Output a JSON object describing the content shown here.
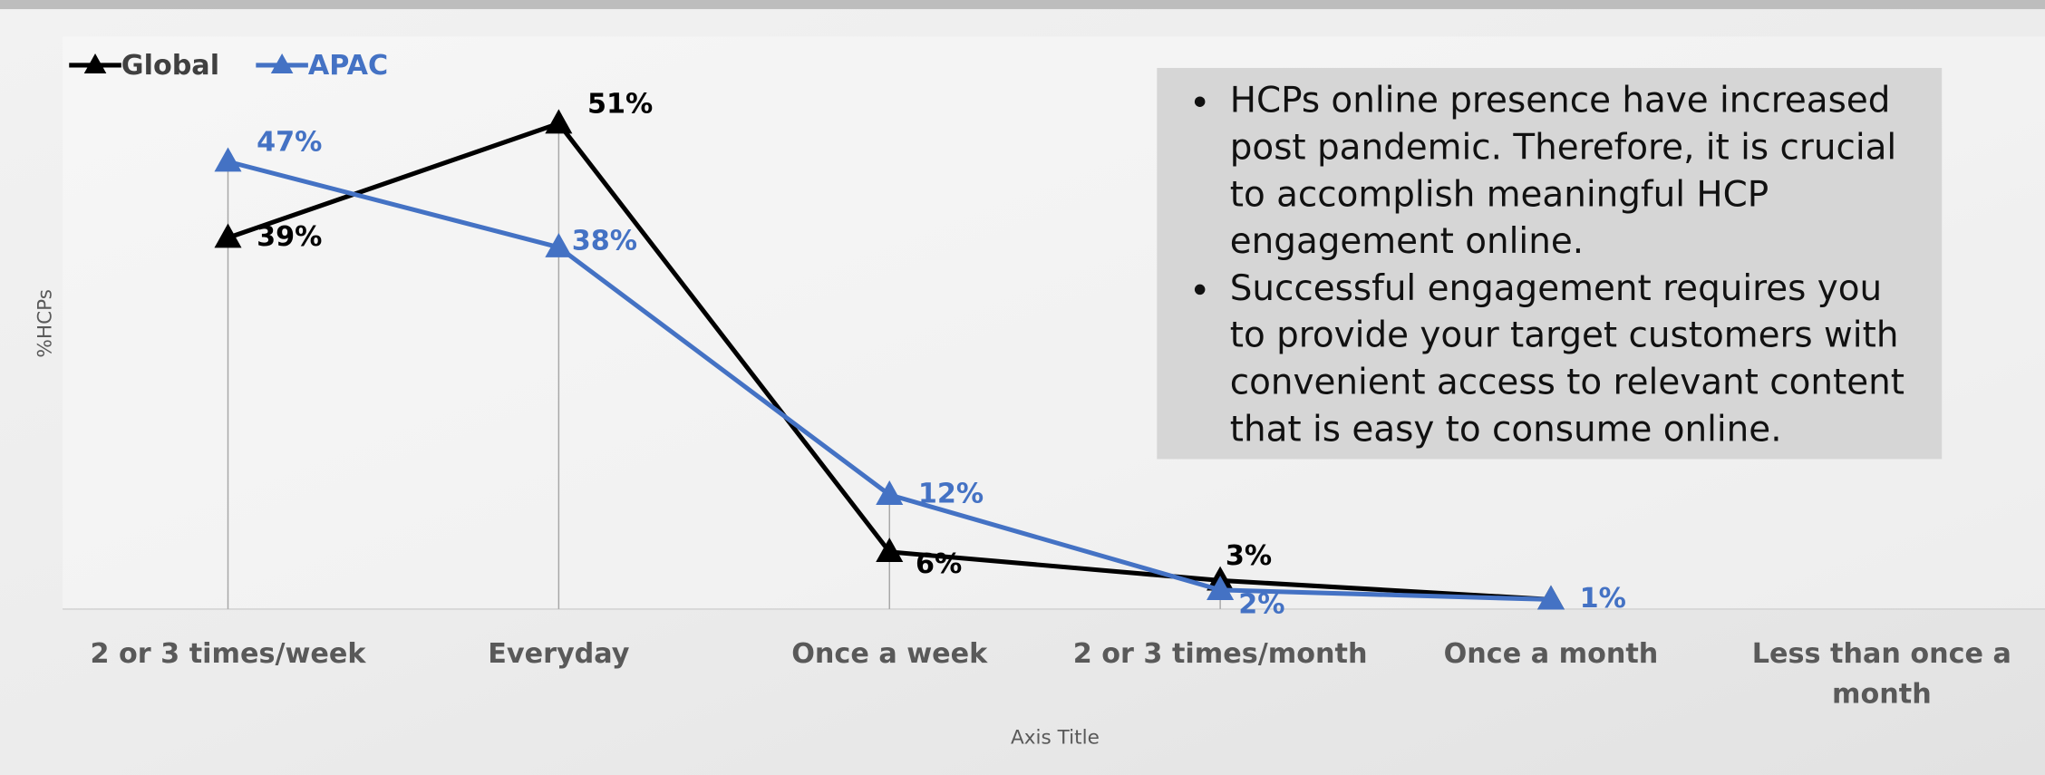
{
  "chart_data": {
    "type": "line",
    "categories": [
      "2 or 3 times/week",
      "Everyday",
      "Once a week",
      "2 or 3 times/month",
      "Once a month",
      "Less than once a month"
    ],
    "series": [
      {
        "name": "Global",
        "color": "#000000",
        "values": [
          39,
          51,
          6,
          3,
          1,
          null
        ],
        "value_labels": [
          "39%",
          "51%",
          "6%",
          "3%",
          null,
          null
        ]
      },
      {
        "name": "APAC",
        "color": "#4472c4",
        "values": [
          47,
          38,
          12,
          2,
          1,
          null
        ],
        "value_labels": [
          "47%",
          "38%",
          "12%",
          "2%",
          "1%",
          null
        ]
      }
    ],
    "ylim": [
      0,
      60
    ],
    "x_label": "Axis Title",
    "y_label": "%HCPs",
    "legend": "top-left",
    "annotation": [
      "HCPs online presence have increased post pandemic. Therefore, it is crucial to accomplish meaningful HCP engagement online.",
      "Successful engagement requires you to provide your target customers with convenient access to relevant content that is easy to consume online."
    ]
  }
}
